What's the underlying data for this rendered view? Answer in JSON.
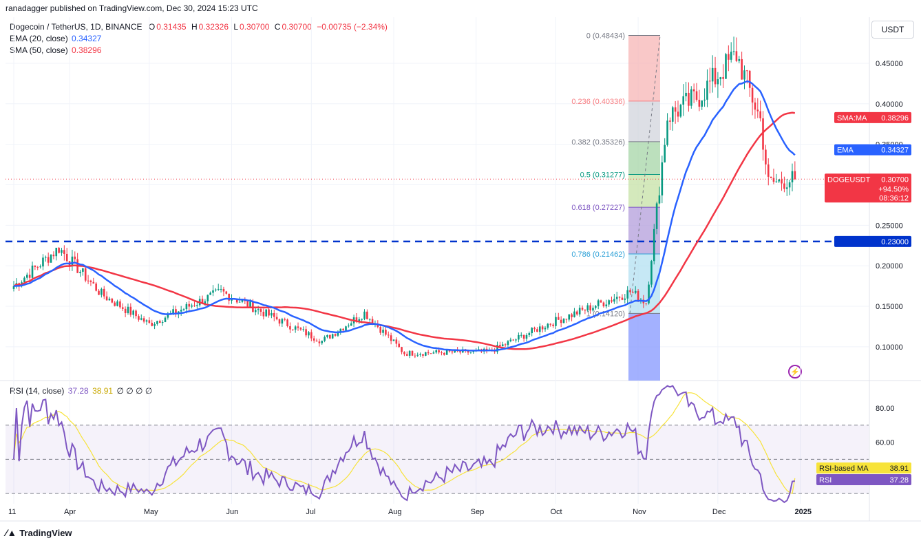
{
  "header": "ranadagger published on TradingView.com, Dec 30, 2024 15:23 UTC",
  "legend": {
    "symbol": "Dogecoin / TetherUS, 1D, BINANCE",
    "o_label": "O",
    "o": "0.31435",
    "h_label": "H",
    "h": "0.32326",
    "l_label": "L",
    "l": "0.30700",
    "c_label": "C",
    "c": "0.30700",
    "change": "−0.00735 (−2.34%)",
    "ema_label": "EMA (20, close)",
    "ema_val": "0.34327",
    "sma_label": "SMA (50, close)",
    "sma_val": "0.38296",
    "rsi_label": "RSI (14, close)",
    "rsi_val": "37.28",
    "rsi_ma_val": "38.91",
    "rsi_extra": "∅ ∅ ∅ ∅"
  },
  "currency": "USDT",
  "brand": "TradingView",
  "colors": {
    "up": "#089981",
    "down": "#f23645",
    "ema": "#2962ff",
    "sma": "#f23645",
    "rsi": "#7e57c2",
    "rsi_ma": "#f7e33a",
    "support": "#0033cc",
    "price_tag": "#f23645"
  },
  "chart_data": {
    "type": "candlestick",
    "symbol": "DOGEUSDT",
    "price_axis_ticks": [
      "0.45000",
      "0.40000",
      "0.35000",
      "0.30000",
      "0.25000",
      "0.20000",
      "0.15000",
      "0.10000"
    ],
    "time_axis_ticks": [
      "11",
      "Apr",
      "May",
      "Jun",
      "Jul",
      "Aug",
      "Sep",
      "Oct",
      "Nov",
      "Dec",
      "2025"
    ],
    "support_level": {
      "label": "0.23000",
      "value": 0.23
    },
    "last_price": {
      "label": "DOGEUSDT",
      "value": "0.30700",
      "change": "+94.50%",
      "countdown": "08:36:12"
    },
    "ema_tag": {
      "label": "EMA",
      "value": "0.34327"
    },
    "sma_tag": {
      "label": "SMA:MA",
      "value": "0.38296"
    },
    "fib_levels": [
      {
        "label": "0 (0.48434)",
        "value": 0.48434
      },
      {
        "label": "0.236 (0.40336)",
        "value": 0.40336
      },
      {
        "label": "0.382 (0.35326)",
        "value": 0.35326
      },
      {
        "label": "0.5 (0.31277)",
        "value": 0.31277
      },
      {
        "label": "0.618 (0.27227)",
        "value": 0.27227
      },
      {
        "label": "0.786 (0.21462)",
        "value": 0.21462
      },
      {
        "label": "1 (0.14120)",
        "value": 0.1412
      }
    ],
    "key_prices": [
      {
        "date": "2024-03-11",
        "close": 0.175
      },
      {
        "date": "2024-03-28",
        "close": 0.222
      },
      {
        "date": "2024-04-13",
        "close": 0.165
      },
      {
        "date": "2024-05-01",
        "close": 0.128
      },
      {
        "date": "2024-05-28",
        "close": 0.168
      },
      {
        "date": "2024-07-05",
        "close": 0.107
      },
      {
        "date": "2024-07-21",
        "close": 0.142
      },
      {
        "date": "2024-08-05",
        "close": 0.092
      },
      {
        "date": "2024-09-06",
        "close": 0.094
      },
      {
        "date": "2024-09-28",
        "close": 0.128
      },
      {
        "date": "2024-10-29",
        "close": 0.168
      },
      {
        "date": "2024-11-04",
        "close": 0.155
      },
      {
        "date": "2024-11-12",
        "close": 0.384
      },
      {
        "date": "2024-11-24",
        "close": 0.41
      },
      {
        "date": "2024-12-08",
        "close": 0.461
      },
      {
        "date": "2024-12-17",
        "close": 0.38
      },
      {
        "date": "2024-12-20",
        "close": 0.302
      },
      {
        "date": "2024-12-30",
        "close": 0.307
      }
    ],
    "rsi": {
      "axis_ticks": [
        "80.00",
        "60.00"
      ],
      "ma_tag": {
        "label": "RSI-based MA",
        "value": "38.91"
      },
      "rsi_tag": {
        "label": "RSI",
        "value": "37.28"
      },
      "levels": [
        70,
        50,
        30
      ]
    }
  }
}
